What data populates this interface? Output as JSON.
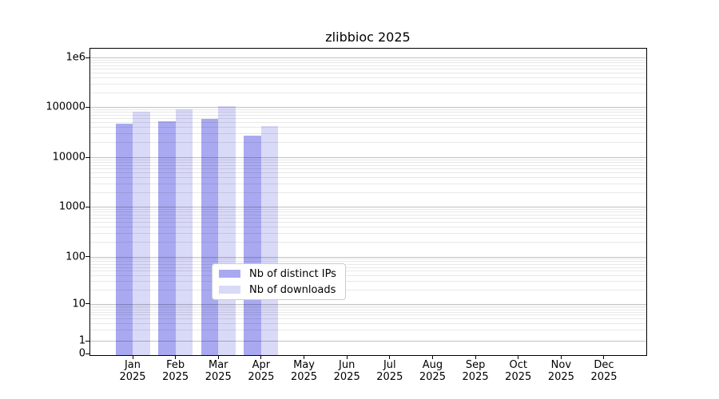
{
  "figure": {
    "background": "#ffffff"
  },
  "chart_data": {
    "type": "bar",
    "title": "zlibbioc 2025",
    "categories": [
      "Jan 2025",
      "Feb 2025",
      "Mar 2025",
      "Apr 2025",
      "May 2025",
      "Jun 2025",
      "Jul 2025",
      "Aug 2025",
      "Sep 2025",
      "Oct 2025",
      "Nov 2025",
      "Dec 2025"
    ],
    "series": [
      {
        "name": "Nb of distinct IPs",
        "color": "#a9a9f1",
        "values": [
          46500,
          51400,
          59000,
          26400,
          null,
          null,
          null,
          null,
          null,
          null,
          null,
          null
        ]
      },
      {
        "name": "Nb of downloads",
        "color": "#d9d9f8",
        "values": [
          81500,
          89000,
          106000,
          41800,
          null,
          null,
          null,
          null,
          null,
          null,
          null,
          null
        ]
      }
    ],
    "xlabel": "",
    "ylabel": "",
    "y_axis": {
      "scale": "log (with 0 shown at axis bottom)",
      "ticklabels": [
        "1e6",
        "100000",
        "10000",
        "1000",
        "100",
        "10",
        "1",
        "0"
      ]
    },
    "grid": "horizontal major and minor gridlines drawn over bars",
    "legend": {
      "position": "lower center",
      "border_color": "#cccccc"
    }
  }
}
